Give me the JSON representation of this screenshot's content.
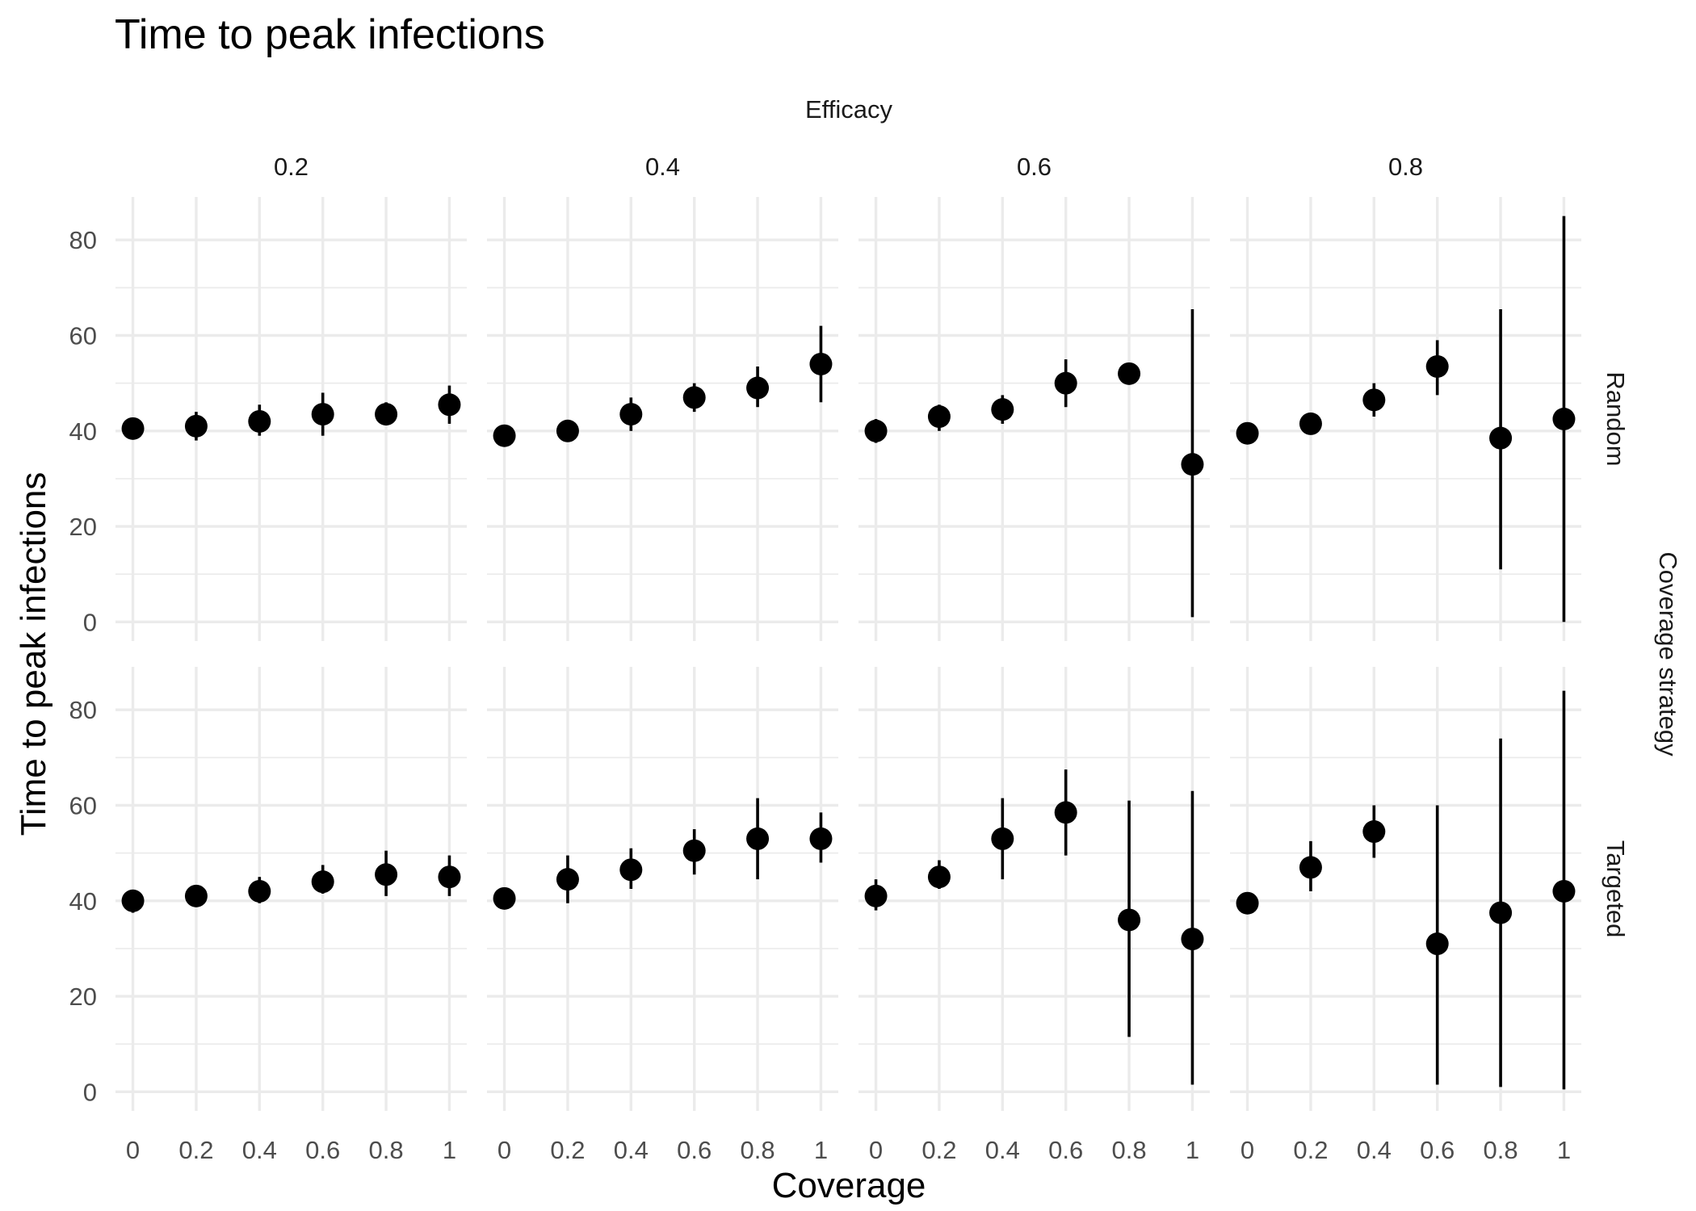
{
  "chart_data": {
    "type": "scatter",
    "title": "Time to peak infections",
    "xlabel": "Coverage",
    "ylabel": "Time to peak infections",
    "col_facet_title": "Efficacy",
    "row_facet_title": "Coverage strategy",
    "col_facets": [
      "0.2",
      "0.4",
      "0.6",
      "0.8"
    ],
    "row_facets": [
      "Random",
      "Targeted"
    ],
    "x_ticks": [
      {
        "value": 0,
        "label": "0"
      },
      {
        "value": 0.2,
        "label": "0.2"
      },
      {
        "value": 0.4,
        "label": "0.4"
      },
      {
        "value": 0.6,
        "label": "0.6"
      },
      {
        "value": 0.8,
        "label": "0.8"
      },
      {
        "value": 1,
        "label": "1"
      }
    ],
    "y_ticks": [
      {
        "value": 0,
        "label": "0"
      },
      {
        "value": 20,
        "label": "20"
      },
      {
        "value": 40,
        "label": "40"
      },
      {
        "value": 60,
        "label": "60"
      },
      {
        "value": 80,
        "label": "80"
      }
    ],
    "xlim": [
      -0.055,
      1.055
    ],
    "ylim": [
      -4,
      89
    ],
    "grid": true,
    "marker_color": "#000000",
    "panels": [
      {
        "row": "Random",
        "col": "0.2",
        "points": [
          {
            "x": 0,
            "y": 40.5,
            "ymin": 38.5,
            "ymax": 42.5
          },
          {
            "x": 0.2,
            "y": 41,
            "ymin": 38,
            "ymax": 44
          },
          {
            "x": 0.4,
            "y": 42,
            "ymin": 39,
            "ymax": 45.5
          },
          {
            "x": 0.6,
            "y": 43.5,
            "ymin": 39,
            "ymax": 48
          },
          {
            "x": 0.8,
            "y": 43.5,
            "ymin": 41.5,
            "ymax": 46
          },
          {
            "x": 1,
            "y": 45.5,
            "ymin": 41.5,
            "ymax": 49.5
          }
        ]
      },
      {
        "row": "Random",
        "col": "0.4",
        "points": [
          {
            "x": 0,
            "y": 39,
            "ymin": 37.5,
            "ymax": 41
          },
          {
            "x": 0.2,
            "y": 40,
            "ymin": 38.5,
            "ymax": 41.5
          },
          {
            "x": 0.4,
            "y": 43.5,
            "ymin": 40,
            "ymax": 47
          },
          {
            "x": 0.6,
            "y": 47,
            "ymin": 44,
            "ymax": 50
          },
          {
            "x": 0.8,
            "y": 49,
            "ymin": 45,
            "ymax": 53.5
          },
          {
            "x": 1,
            "y": 54,
            "ymin": 46,
            "ymax": 62
          }
        ]
      },
      {
        "row": "Random",
        "col": "0.6",
        "points": [
          {
            "x": 0,
            "y": 40,
            "ymin": 37.5,
            "ymax": 42.5
          },
          {
            "x": 0.2,
            "y": 43,
            "ymin": 40,
            "ymax": 45.5
          },
          {
            "x": 0.4,
            "y": 44.5,
            "ymin": 41.5,
            "ymax": 47.5
          },
          {
            "x": 0.6,
            "y": 50,
            "ymin": 45,
            "ymax": 55
          },
          {
            "x": 0.8,
            "y": 52,
            "ymin": 50.5,
            "ymax": 53.5
          },
          {
            "x": 1,
            "y": 33,
            "ymin": 1,
            "ymax": 65.5
          }
        ]
      },
      {
        "row": "Random",
        "col": "0.8",
        "points": [
          {
            "x": 0,
            "y": 39.5,
            "ymin": 38,
            "ymax": 41
          },
          {
            "x": 0.2,
            "y": 41.5,
            "ymin": 40,
            "ymax": 43
          },
          {
            "x": 0.4,
            "y": 46.5,
            "ymin": 43,
            "ymax": 50
          },
          {
            "x": 0.6,
            "y": 53.5,
            "ymin": 47.5,
            "ymax": 59
          },
          {
            "x": 0.8,
            "y": 38.5,
            "ymin": 11,
            "ymax": 65.5
          },
          {
            "x": 1,
            "y": 42.5,
            "ymin": 0,
            "ymax": 85
          }
        ]
      },
      {
        "row": "Targeted",
        "col": "0.2",
        "points": [
          {
            "x": 0,
            "y": 40,
            "ymin": 37.5,
            "ymax": 42
          },
          {
            "x": 0.2,
            "y": 41,
            "ymin": 39.5,
            "ymax": 42.5
          },
          {
            "x": 0.4,
            "y": 42,
            "ymin": 39.5,
            "ymax": 45
          },
          {
            "x": 0.6,
            "y": 44,
            "ymin": 41.5,
            "ymax": 47.5
          },
          {
            "x": 0.8,
            "y": 45.5,
            "ymin": 41,
            "ymax": 50.5
          },
          {
            "x": 1,
            "y": 45,
            "ymin": 41,
            "ymax": 49.5
          }
        ]
      },
      {
        "row": "Targeted",
        "col": "0.4",
        "points": [
          {
            "x": 0,
            "y": 40.5,
            "ymin": 38.5,
            "ymax": 42.5
          },
          {
            "x": 0.2,
            "y": 44.5,
            "ymin": 39.5,
            "ymax": 49.5
          },
          {
            "x": 0.4,
            "y": 46.5,
            "ymin": 42.5,
            "ymax": 51
          },
          {
            "x": 0.6,
            "y": 50.5,
            "ymin": 45.5,
            "ymax": 55
          },
          {
            "x": 0.8,
            "y": 53,
            "ymin": 44.5,
            "ymax": 61.5
          },
          {
            "x": 1,
            "y": 53,
            "ymin": 48,
            "ymax": 58.5
          }
        ]
      },
      {
        "row": "Targeted",
        "col": "0.6",
        "points": [
          {
            "x": 0,
            "y": 41,
            "ymin": 38,
            "ymax": 44.5
          },
          {
            "x": 0.2,
            "y": 45,
            "ymin": 42.5,
            "ymax": 48.5
          },
          {
            "x": 0.4,
            "y": 53,
            "ymin": 44.5,
            "ymax": 61.5
          },
          {
            "x": 0.6,
            "y": 58.5,
            "ymin": 49.5,
            "ymax": 67.5
          },
          {
            "x": 0.8,
            "y": 36,
            "ymin": 11.5,
            "ymax": 61
          },
          {
            "x": 1,
            "y": 32,
            "ymin": 1.5,
            "ymax": 63
          }
        ]
      },
      {
        "row": "Targeted",
        "col": "0.8",
        "points": [
          {
            "x": 0,
            "y": 39.5,
            "ymin": 38,
            "ymax": 41
          },
          {
            "x": 0.2,
            "y": 47,
            "ymin": 42,
            "ymax": 52.5
          },
          {
            "x": 0.4,
            "y": 54.5,
            "ymin": 49,
            "ymax": 60
          },
          {
            "x": 0.6,
            "y": 31,
            "ymin": 1.5,
            "ymax": 60
          },
          {
            "x": 0.8,
            "y": 37.5,
            "ymin": 1,
            "ymax": 74
          },
          {
            "x": 1,
            "y": 42,
            "ymin": 0.5,
            "ymax": 84
          }
        ]
      }
    ]
  }
}
